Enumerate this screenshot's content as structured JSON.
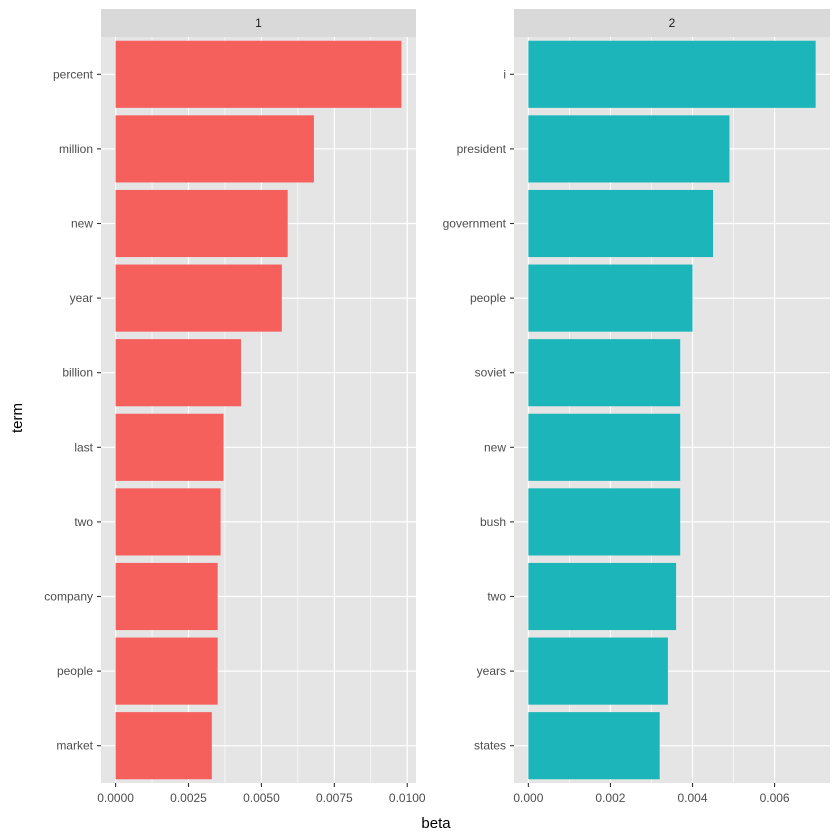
{
  "chart_data": {
    "type": "bar",
    "orientation": "horizontal",
    "facet_layout": "1 row x 2 columns",
    "xlabel": "beta",
    "ylabel": "term",
    "colors": {
      "panel_background": "#e5e5e5",
      "grid": "#ffffff",
      "strip_background": "#d9d9d9"
    },
    "facets": [
      {
        "label": "1",
        "color": "#F5605C",
        "categories": [
          "percent",
          "million",
          "new",
          "year",
          "billion",
          "last",
          "two",
          "company",
          "people",
          "market"
        ],
        "values": [
          0.0098,
          0.0068,
          0.0059,
          0.0057,
          0.0043,
          0.0037,
          0.0036,
          0.0035,
          0.0035,
          0.0033
        ],
        "xlim": [
          -0.0005,
          0.0103
        ],
        "x_ticks": [
          0.0,
          0.0025,
          0.005,
          0.0075,
          0.01
        ],
        "x_tick_labels": [
          "0.0000",
          "0.0025",
          "0.0050",
          "0.0075",
          "0.0100"
        ]
      },
      {
        "label": "2",
        "color": "#1CB5BA",
        "categories": [
          "i",
          "president",
          "government",
          "people",
          "soviet",
          "new",
          "bush",
          "two",
          "years",
          "states"
        ],
        "values": [
          0.007,
          0.0049,
          0.0045,
          0.004,
          0.0037,
          0.0037,
          0.0037,
          0.0036,
          0.0034,
          0.0032
        ],
        "xlim": [
          -0.00035,
          0.00735
        ],
        "x_ticks": [
          0.0,
          0.002,
          0.004,
          0.006
        ],
        "x_tick_labels": [
          "0.000",
          "0.002",
          "0.004",
          "0.006"
        ]
      }
    ]
  }
}
